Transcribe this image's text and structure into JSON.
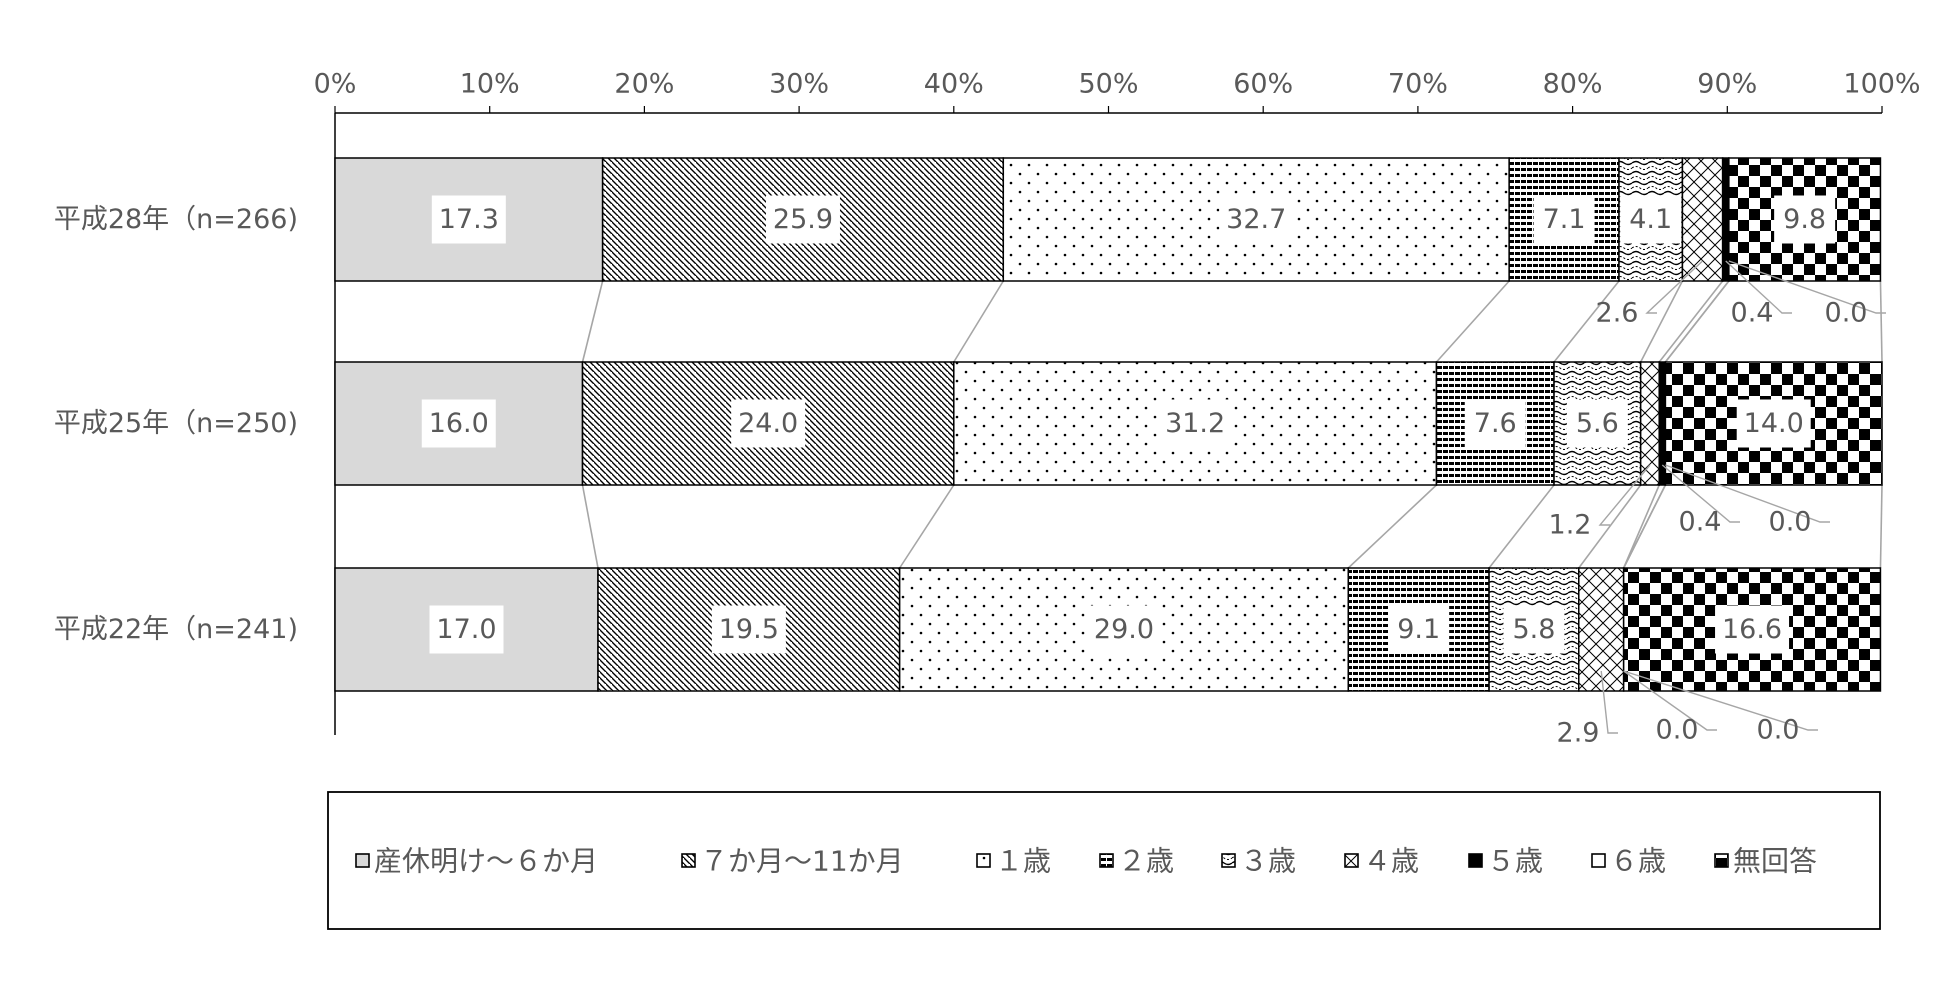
{
  "chart_data": {
    "type": "bar",
    "orientation": "horizontal",
    "stacked": true,
    "percent": true,
    "categories": [
      "平成28年（n=266)",
      "平成25年（n=250)",
      "平成22年（n=241)"
    ],
    "series": [
      {
        "name": "産休明け～６か月",
        "values": [
          17.3,
          16.0,
          17.0
        ],
        "labels": [
          "17.3",
          "16.0",
          "17.0"
        ]
      },
      {
        "name": "７か月～11か月",
        "values": [
          25.9,
          24.0,
          19.5
        ],
        "labels": [
          "25.9",
          "24.0",
          "19.5"
        ]
      },
      {
        "name": "１歳",
        "values": [
          32.7,
          31.2,
          29.0
        ],
        "labels": [
          "32.7",
          "31.2",
          "29.0"
        ]
      },
      {
        "name": "２歳",
        "values": [
          7.1,
          7.6,
          9.1
        ],
        "labels": [
          "7.1",
          "7.6",
          "9.1"
        ]
      },
      {
        "name": "３歳",
        "values": [
          4.1,
          5.6,
          5.8
        ],
        "labels": [
          "4.1",
          "5.6",
          "5.8"
        ]
      },
      {
        "name": "４歳",
        "values": [
          2.6,
          1.2,
          2.9
        ],
        "labels": [
          "2.6",
          "1.2",
          "2.9"
        ]
      },
      {
        "name": "５歳",
        "values": [
          0.4,
          0.4,
          0.0
        ],
        "labels": [
          "0.4",
          "0.4",
          "0.0"
        ]
      },
      {
        "name": "６歳",
        "values": [
          0.0,
          0.0,
          0.0
        ],
        "labels": [
          "0.0",
          "0.0",
          "0.0"
        ]
      },
      {
        "name": "無回答",
        "values": [
          9.8,
          14.0,
          16.6
        ],
        "labels": [
          "9.8",
          "14.0",
          "16.6"
        ]
      }
    ],
    "x_ticks": [
      "0%",
      "10%",
      "20%",
      "30%",
      "40%",
      "50%",
      "60%",
      "70%",
      "80%",
      "90%",
      "100%"
    ],
    "xlim": [
      0,
      100
    ],
    "grid": false,
    "legend_position": "bottom",
    "series_lines": true
  }
}
